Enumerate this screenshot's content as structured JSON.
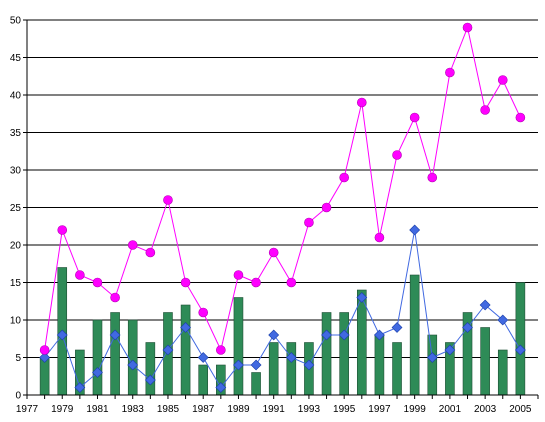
{
  "chart_data": {
    "type": "bar",
    "title": "",
    "xlabel": "",
    "ylabel": "",
    "grid": true,
    "xlim": [
      1977,
      2006
    ],
    "ylim": [
      0,
      50
    ],
    "y_ticks": [
      0,
      5,
      10,
      15,
      20,
      25,
      30,
      35,
      40,
      45,
      50
    ],
    "x_ticks": [
      1977,
      1979,
      1981,
      1983,
      1985,
      1987,
      1989,
      1991,
      1993,
      1995,
      1997,
      1999,
      2001,
      2003,
      2005
    ],
    "categories": [
      1978,
      1979,
      1980,
      1981,
      1982,
      1983,
      1984,
      1985,
      1986,
      1987,
      1988,
      1989,
      1990,
      1991,
      1992,
      1993,
      1994,
      1995,
      1996,
      1997,
      1998,
      1999,
      2000,
      2001,
      2002,
      2003,
      2004,
      2005
    ],
    "series": [
      {
        "type": "bar",
        "color": "#2e8b57",
        "values": [
          5,
          17,
          6,
          10,
          11,
          10,
          7,
          11,
          12,
          4,
          4,
          13,
          3,
          7,
          7,
          7,
          11,
          11,
          14,
          8,
          7,
          16,
          8,
          7,
          11,
          9,
          6,
          15
        ]
      },
      {
        "type": "line",
        "marker": "diamond",
        "color": "#4169e1",
        "values": [
          5,
          8,
          1,
          3,
          8,
          4,
          2,
          6,
          9,
          5,
          1,
          4,
          4,
          8,
          5,
          4,
          8,
          8,
          13,
          8,
          9,
          22,
          5,
          6,
          9,
          12,
          10,
          6
        ]
      },
      {
        "type": "line",
        "marker": "circle",
        "color": "#ff00ff",
        "values": [
          6,
          22,
          16,
          15,
          13,
          20,
          19,
          26,
          15,
          11,
          6,
          16,
          15,
          19,
          15,
          23,
          25,
          29,
          39,
          21,
          32,
          37,
          29,
          43,
          49,
          38,
          42,
          37
        ]
      }
    ]
  }
}
